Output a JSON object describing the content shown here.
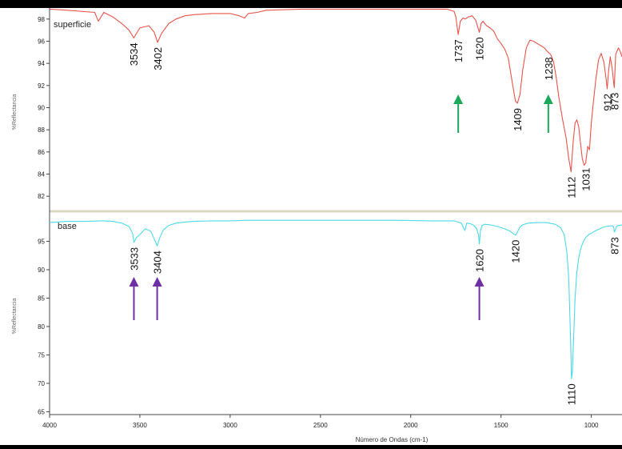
{
  "chart_data": [
    {
      "type": "line",
      "panel_name": "superficie",
      "ylabel": "%Reflectancia",
      "xlim": [
        4000,
        830
      ],
      "ylim": [
        81,
        99
      ],
      "y_ticks": [
        82,
        84,
        86,
        88,
        90,
        92,
        94,
        96,
        98
      ],
      "color": "#e8534a",
      "grid": false,
      "series": [
        {
          "x": [
            4000,
            3900,
            3750,
            3730,
            3700,
            3650,
            3600,
            3560,
            3534,
            3500,
            3450,
            3420,
            3402,
            3380,
            3340,
            3300,
            3250,
            3200,
            3100,
            3000,
            2950,
            2920,
            2900,
            2850,
            2800,
            2600,
            2400,
            2200,
            2000,
            1900,
            1800,
            1760,
            1750,
            1737,
            1725,
            1710,
            1700,
            1680,
            1660,
            1640,
            1620,
            1610,
            1600,
            1580,
            1560,
            1540,
            1520,
            1500,
            1480,
            1460,
            1440,
            1420,
            1409,
            1395,
            1380,
            1360,
            1340,
            1320,
            1300,
            1280,
            1260,
            1245,
            1238,
            1225,
            1210,
            1195,
            1180,
            1160,
            1140,
            1125,
            1112,
            1100,
            1090,
            1080,
            1070,
            1060,
            1050,
            1040,
            1031,
            1020,
            1010,
            1000,
            990,
            975,
            960,
            945,
            930,
            918,
            912,
            905,
            895,
            885,
            875,
            873,
            865,
            850,
            840,
            830
          ],
          "y": [
            98.9,
            98.8,
            98.6,
            97.8,
            98.6,
            98.2,
            97.6,
            97.0,
            96.3,
            97.2,
            97.4,
            96.8,
            95.9,
            96.7,
            97.6,
            98.0,
            98.3,
            98.4,
            98.5,
            98.5,
            98.3,
            98.1,
            98.5,
            98.6,
            98.8,
            98.9,
            98.9,
            98.9,
            98.9,
            98.9,
            98.9,
            98.7,
            98.2,
            96.6,
            97.8,
            98.1,
            98.0,
            98.2,
            98.3,
            97.9,
            96.8,
            97.6,
            97.8,
            97.4,
            97.2,
            96.9,
            96.2,
            95.8,
            95.3,
            94.5,
            92.5,
            90.6,
            90.4,
            91.2,
            93.4,
            95.4,
            96.1,
            96.0,
            95.8,
            95.6,
            95.4,
            95.1,
            95.0,
            94.8,
            94.2,
            92.8,
            91.0,
            89.0,
            87.3,
            85.4,
            84.2,
            87.0,
            88.6,
            88.9,
            88.3,
            86.8,
            85.4,
            84.8,
            85.0,
            86.5,
            86.2,
            88.6,
            90.3,
            92.5,
            94.3,
            94.9,
            94.1,
            92.6,
            91.7,
            93.2,
            94.6,
            93.6,
            92.1,
            91.8,
            94.8,
            95.4,
            95.1,
            94.6
          ]
        }
      ],
      "peak_labels": [
        "3534",
        "3402",
        "1737",
        "1620",
        "1409",
        "1238",
        "1112",
        "1031",
        "912",
        "873"
      ]
    },
    {
      "type": "line",
      "panel_name": "base",
      "ylabel": "%Reflectancia",
      "xlabel": "Número de Ondas (cm-1)",
      "xlim": [
        4000,
        830
      ],
      "ylim": [
        64.5,
        100
      ],
      "y_ticks": [
        65,
        70,
        75,
        80,
        85,
        90,
        95
      ],
      "x_ticks": [
        4000,
        3500,
        3000,
        2500,
        2000,
        1500,
        1000
      ],
      "color": "#4dd9e8",
      "grid": false,
      "series": [
        {
          "x": [
            4000,
            3900,
            3800,
            3700,
            3650,
            3600,
            3560,
            3540,
            3533,
            3520,
            3500,
            3470,
            3440,
            3420,
            3404,
            3390,
            3370,
            3340,
            3300,
            3250,
            3200,
            3100,
            3000,
            2900,
            2700,
            2500,
            2300,
            2100,
            1900,
            1760,
            1720,
            1700,
            1690,
            1670,
            1650,
            1635,
            1625,
            1620,
            1614,
            1605,
            1590,
            1560,
            1520,
            1480,
            1450,
            1430,
            1420,
            1410,
            1395,
            1380,
            1350,
            1300,
            1250,
            1200,
            1170,
            1150,
            1135,
            1125,
            1118,
            1112,
            1110,
            1105,
            1098,
            1090,
            1080,
            1070,
            1060,
            1050,
            1040,
            1030,
            1020,
            1010,
            1000,
            990,
            980,
            960,
            940,
            920,
            900,
            880,
            875,
            873,
            868,
            860,
            850,
            840,
            830
          ],
          "y": [
            98.3,
            98.5,
            98.5,
            98.6,
            98.5,
            98.2,
            97.6,
            96.4,
            94.8,
            95.6,
            96.2,
            97.2,
            96.8,
            95.4,
            94.2,
            95.6,
            97.0,
            97.8,
            98.2,
            98.4,
            98.5,
            98.6,
            98.6,
            98.7,
            98.7,
            98.7,
            98.7,
            98.7,
            98.6,
            98.6,
            98.2,
            96.9,
            98.2,
            98.1,
            97.8,
            97.2,
            96.2,
            94.5,
            96.8,
            97.8,
            98.0,
            97.9,
            97.6,
            97.2,
            96.8,
            96.3,
            96.1,
            96.6,
            97.5,
            97.9,
            98.2,
            98.3,
            98.3,
            98.0,
            97.4,
            96.2,
            93.0,
            88.5,
            81.0,
            74.5,
            70.8,
            72.0,
            78.0,
            85.0,
            89.5,
            92.0,
            93.5,
            94.5,
            95.2,
            95.7,
            96.0,
            96.3,
            96.4,
            96.6,
            96.8,
            97.1,
            97.4,
            97.6,
            97.7,
            97.7,
            97.4,
            96.6,
            96.9,
            97.6,
            97.8,
            97.8,
            97.9
          ]
        }
      ],
      "peak_labels": [
        "3533",
        "3404",
        "1620",
        "1420",
        "1110",
        "873"
      ]
    }
  ],
  "annotations": {
    "green_arrows_at": [
      1737,
      1238
    ],
    "purple_arrows_at": [
      3533,
      3404,
      1620
    ],
    "green_color": "#1ea85a",
    "purple_color": "#6e2fa5"
  }
}
